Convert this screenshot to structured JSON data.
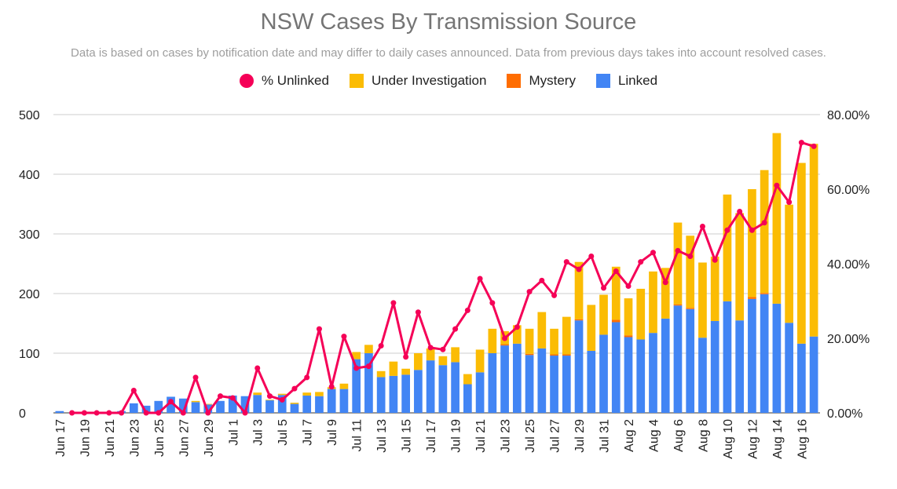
{
  "chart_data": {
    "type": "bar",
    "title": "NSW Cases By Transmission Source",
    "subtitle": "Data is based on cases by notification date and may differ to daily cases announced. Data from previous days takes into account resolved cases.",
    "legend_position": "top",
    "grid": true,
    "stacked": true,
    "categories": [
      "Jun 17",
      "Jun 18",
      "Jun 19",
      "Jun 20",
      "Jun 21",
      "Jun 22",
      "Jun 23",
      "Jun 24",
      "Jun 25",
      "Jun 26",
      "Jun 27",
      "Jun 28",
      "Jun 29",
      "Jun 30",
      "Jul 1",
      "Jul 2",
      "Jul 3",
      "Jul 4",
      "Jul 5",
      "Jul 6",
      "Jul 7",
      "Jul 8",
      "Jul 9",
      "Jul 10",
      "Jul 11",
      "Jul 12",
      "Jul 13",
      "Jul 14",
      "Jul 15",
      "Jul 16",
      "Jul 17",
      "Jul 18",
      "Jul 19",
      "Jul 20",
      "Jul 21",
      "Jul 22",
      "Jul 23",
      "Jul 24",
      "Jul 25",
      "Jul 26",
      "Jul 27",
      "Jul 28",
      "Jul 29",
      "Jul 30",
      "Jul 31",
      "Aug 1",
      "Aug 2",
      "Aug 3",
      "Aug 4",
      "Aug 5",
      "Aug 6",
      "Aug 7",
      "Aug 8",
      "Aug 9",
      "Aug 10",
      "Aug 11",
      "Aug 12",
      "Aug 13",
      "Aug 14",
      "Aug 15",
      "Aug 16",
      "Aug 17"
    ],
    "x_tick_labels": [
      "Jun 17",
      "Jun 19",
      "Jun 21",
      "Jun 23",
      "Jun 25",
      "Jun 27",
      "Jun 29",
      "Jul 1",
      "Jul 3",
      "Jul 5",
      "Jul 7",
      "Jul 9",
      "Jul 11",
      "Jul 13",
      "Jul 15",
      "Jul 17",
      "Jul 19",
      "Jul 21",
      "Jul 23",
      "Jul 25",
      "Jul 27",
      "Jul 29",
      "Jul 31",
      "Aug 2",
      "Aug 4",
      "Aug 6",
      "Aug 8",
      "Aug 10",
      "Aug 12",
      "Aug 14",
      "Aug 16"
    ],
    "y_left": {
      "ylim": [
        0,
        500
      ],
      "ticks": [
        0,
        100,
        200,
        300,
        400,
        500
      ]
    },
    "y_right": {
      "ylim": [
        0,
        0.8
      ],
      "ticks": [
        "0.00%",
        "20.00%",
        "40.00%",
        "60.00%",
        "80.00%"
      ]
    },
    "series": [
      {
        "name": "Linked",
        "color": "#4285f4",
        "kind": "bar",
        "values": [
          3,
          0,
          0,
          0,
          0,
          3,
          16,
          12,
          20,
          27,
          24,
          18,
          14,
          20,
          29,
          28,
          30,
          21,
          30,
          15,
          29,
          28,
          40,
          40,
          90,
          100,
          60,
          62,
          64,
          72,
          88,
          80,
          85,
          48,
          68,
          100,
          113,
          116,
          97,
          108,
          96,
          96,
          155,
          104,
          131,
          152,
          127,
          123,
          134,
          158,
          180,
          174,
          126,
          154,
          187,
          155,
          191,
          199,
          183,
          151,
          116,
          128
        ]
      },
      {
        "name": "Mystery",
        "color": "#ff6d01",
        "kind": "bar",
        "values": [
          0,
          0,
          0,
          0,
          0,
          0,
          0,
          0,
          0,
          0,
          0,
          0,
          0,
          0,
          0,
          0,
          0,
          0,
          0,
          0,
          0,
          0,
          0,
          0,
          0,
          0,
          0,
          0,
          0,
          0,
          0,
          0,
          0,
          0,
          0,
          0,
          2,
          0,
          2,
          0,
          2,
          2,
          2,
          0,
          0,
          4,
          3,
          0,
          0,
          0,
          2,
          2,
          0,
          0,
          0,
          0,
          3,
          2,
          0,
          0,
          0,
          0
        ]
      },
      {
        "name": "Under Investigation",
        "color": "#fbbc04",
        "kind": "bar",
        "values": [
          0,
          0,
          0,
          0,
          0,
          0,
          0,
          0,
          0,
          0,
          0,
          2,
          1,
          0,
          0,
          0,
          4,
          1,
          2,
          2,
          5,
          7,
          3,
          9,
          12,
          14,
          10,
          24,
          10,
          28,
          20,
          15,
          25,
          17,
          38,
          41,
          22,
          31,
          42,
          61,
          43,
          63,
          96,
          77,
          67,
          89,
          62,
          85,
          103,
          85,
          137,
          121,
          126,
          108,
          179,
          180,
          181,
          206,
          286,
          198,
          303,
          323
        ]
      },
      {
        "name": "% Unlinked",
        "color": "#f50057",
        "kind": "line",
        "values": [
          null,
          0,
          0,
          0,
          0,
          0,
          0.06,
          0,
          0,
          0.03,
          0,
          0.095,
          0,
          0.045,
          0.04,
          0,
          0.12,
          0.045,
          0.035,
          0.065,
          0.095,
          0.225,
          0.07,
          0.205,
          0.12,
          0.125,
          0.18,
          0.295,
          0.15,
          0.27,
          0.175,
          0.17,
          0.225,
          0.275,
          0.36,
          0.295,
          0.2,
          0.23,
          0.325,
          0.355,
          0.315,
          0.405,
          0.385,
          0.42,
          0.335,
          0.38,
          0.34,
          0.405,
          0.43,
          0.35,
          0.435,
          0.42,
          0.5,
          0.41,
          0.49,
          0.54,
          0.49,
          0.51,
          0.61,
          0.565,
          0.725,
          0.715
        ]
      }
    ]
  }
}
